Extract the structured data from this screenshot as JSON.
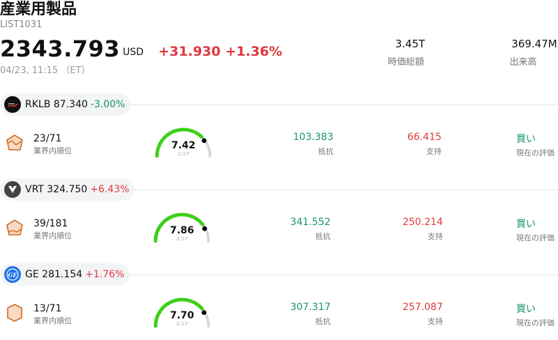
{
  "header": {
    "title": "産業用製品",
    "code": "LIST1031",
    "price": "2343.793",
    "currency": "USD",
    "change": "+31.930 +1.36%",
    "timestamp": "04/23, 11:15 （ET）",
    "market_cap_value": "3.45T",
    "market_cap_label": "時価総額",
    "volume_value": "369.47M",
    "volume_label": "出来高"
  },
  "stocks": [
    {
      "ticker": "RKLB",
      "price": "87.340",
      "change": "-3.00%",
      "direction": "down",
      "logo_icon": "rocket-lab-logo-icon",
      "rank": "23/71",
      "rank_label": "業界内順位",
      "score": "7.42",
      "score_label": "スコア",
      "score_fraction": 0.742,
      "resistance": "103.383",
      "resistance_label": "抵抗",
      "support": "66.415",
      "support_label": "支持",
      "evaluation": "買い",
      "evaluation_label": "現在の評価"
    },
    {
      "ticker": "VRT",
      "price": "324.750",
      "change": "+6.43%",
      "direction": "up",
      "logo_icon": "vertiv-logo-icon",
      "rank": "39/181",
      "rank_label": "業界内順位",
      "score": "7.86",
      "score_label": "スコア",
      "score_fraction": 0.786,
      "resistance": "341.552",
      "resistance_label": "抵抗",
      "support": "250.214",
      "support_label": "支持",
      "evaluation": "買い",
      "evaluation_label": "現在の評価"
    },
    {
      "ticker": "GE",
      "price": "281.154",
      "change": "+1.76%",
      "direction": "up",
      "logo_icon": "ge-logo-icon",
      "rank": "13/71",
      "rank_label": "業界内順位",
      "score": "7.70",
      "score_label": "スコア",
      "score_fraction": 0.77,
      "resistance": "307.317",
      "resistance_label": "抵抗",
      "support": "257.087",
      "support_label": "支持",
      "evaluation": "買い",
      "evaluation_label": "現在の評価"
    }
  ],
  "colors": {
    "up": "#e0383e",
    "down": "#17956b",
    "gauge_fill": "#3ecf1a",
    "gauge_track": "#d6d7de",
    "rank_icon": "#d2691e"
  }
}
